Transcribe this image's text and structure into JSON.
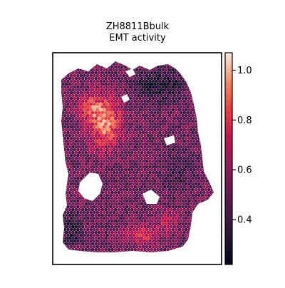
{
  "chart_data": {
    "type": "heatmap",
    "title_line1": "ZH8811Bbulk",
    "title_line2": "EMT activity",
    "colormap": "rocket",
    "color_range": [
      0.22,
      1.07
    ],
    "colorbar_ticks": [
      {
        "value": 0.4,
        "label": "0.4"
      },
      {
        "value": 0.6,
        "label": "0.6"
      },
      {
        "value": 0.8,
        "label": "0.8"
      },
      {
        "value": 1.0,
        "label": "1.0"
      }
    ],
    "grid": false,
    "colorbar_position": "right"
  }
}
